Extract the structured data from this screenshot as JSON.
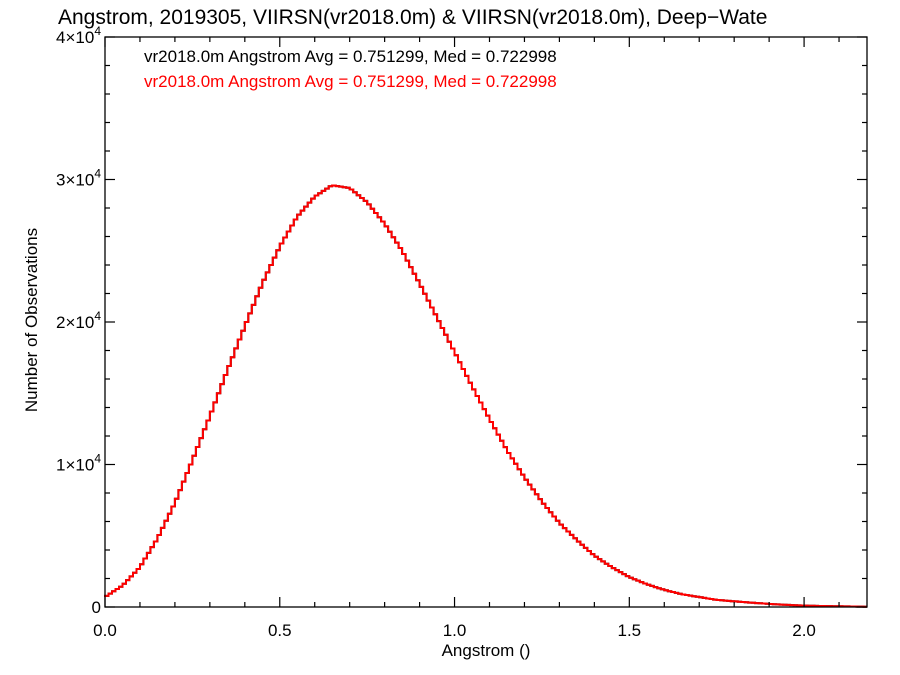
{
  "chart_data": {
    "type": "line",
    "title": "Angstrom, 2019305, VIIRSN(vr2018.0m) & VIIRSN(vr2018.0m), Deep−Wate",
    "xlabel": "Angstrom ()",
    "ylabel": "Number of Observations",
    "xlim": [
      0.0,
      2.18
    ],
    "ylim": [
      0,
      40000
    ],
    "x_ticks": [
      {
        "value": 0.0,
        "label": "0.0"
      },
      {
        "value": 0.5,
        "label": "0.5"
      },
      {
        "value": 1.0,
        "label": "1.0"
      },
      {
        "value": 1.5,
        "label": "1.5"
      },
      {
        "value": 2.0,
        "label": "2.0"
      }
    ],
    "y_ticks": [
      {
        "value": 0,
        "mant": "0",
        "exp": ""
      },
      {
        "value": 10000,
        "mant": "1×10",
        "exp": "4"
      },
      {
        "value": 20000,
        "mant": "2×10",
        "exp": "4"
      },
      {
        "value": 30000,
        "mant": "3×10",
        "exp": "4"
      },
      {
        "value": 40000,
        "mant": "4×10",
        "exp": "4"
      }
    ],
    "step": 0.01,
    "legend_position": "top-left",
    "series": [
      {
        "name": "vr2018.0m Angstrom Avg = 0.751299, Med = 0.722998",
        "color": "#000000",
        "x": [
          0.0,
          0.05,
          0.1,
          0.15,
          0.2,
          0.25,
          0.3,
          0.35,
          0.4,
          0.45,
          0.5,
          0.55,
          0.6,
          0.65,
          0.7,
          0.75,
          0.8,
          0.85,
          0.9,
          0.95,
          1.0,
          1.05,
          1.1,
          1.15,
          1.2,
          1.25,
          1.3,
          1.35,
          1.4,
          1.45,
          1.5,
          1.55,
          1.6,
          1.65,
          1.7,
          1.75,
          1.8,
          1.85,
          1.9,
          1.95,
          2.0,
          2.05,
          2.1,
          2.15,
          2.18
        ],
        "y": [
          700,
          1500,
          2800,
          4800,
          7300,
          10300,
          13400,
          16600,
          19700,
          22700,
          25300,
          27400,
          28800,
          29600,
          29400,
          28400,
          26900,
          25000,
          22700,
          20300,
          17900,
          15500,
          13200,
          11000,
          9100,
          7400,
          5900,
          4700,
          3600,
          2800,
          2100,
          1600,
          1200,
          900,
          700,
          500,
          400,
          300,
          220,
          150,
          100,
          70,
          50,
          30,
          20
        ]
      },
      {
        "name": "vr2018.0m Angstrom Avg = 0.751299, Med = 0.722998",
        "color": "#ff0000",
        "x": [
          0.0,
          0.05,
          0.1,
          0.15,
          0.2,
          0.25,
          0.3,
          0.35,
          0.4,
          0.45,
          0.5,
          0.55,
          0.6,
          0.65,
          0.7,
          0.75,
          0.8,
          0.85,
          0.9,
          0.95,
          1.0,
          1.05,
          1.1,
          1.15,
          1.2,
          1.25,
          1.3,
          1.35,
          1.4,
          1.45,
          1.5,
          1.55,
          1.6,
          1.65,
          1.7,
          1.75,
          1.8,
          1.85,
          1.9,
          1.95,
          2.0,
          2.05,
          2.1,
          2.15,
          2.18
        ],
        "y": [
          700,
          1500,
          2800,
          4800,
          7300,
          10300,
          13400,
          16600,
          19700,
          22700,
          25300,
          27400,
          28800,
          29600,
          29400,
          28400,
          26900,
          25000,
          22700,
          20300,
          17900,
          15500,
          13200,
          11000,
          9100,
          7400,
          5900,
          4700,
          3600,
          2800,
          2100,
          1600,
          1200,
          900,
          700,
          500,
          400,
          300,
          220,
          150,
          100,
          70,
          50,
          30,
          20
        ]
      }
    ]
  }
}
